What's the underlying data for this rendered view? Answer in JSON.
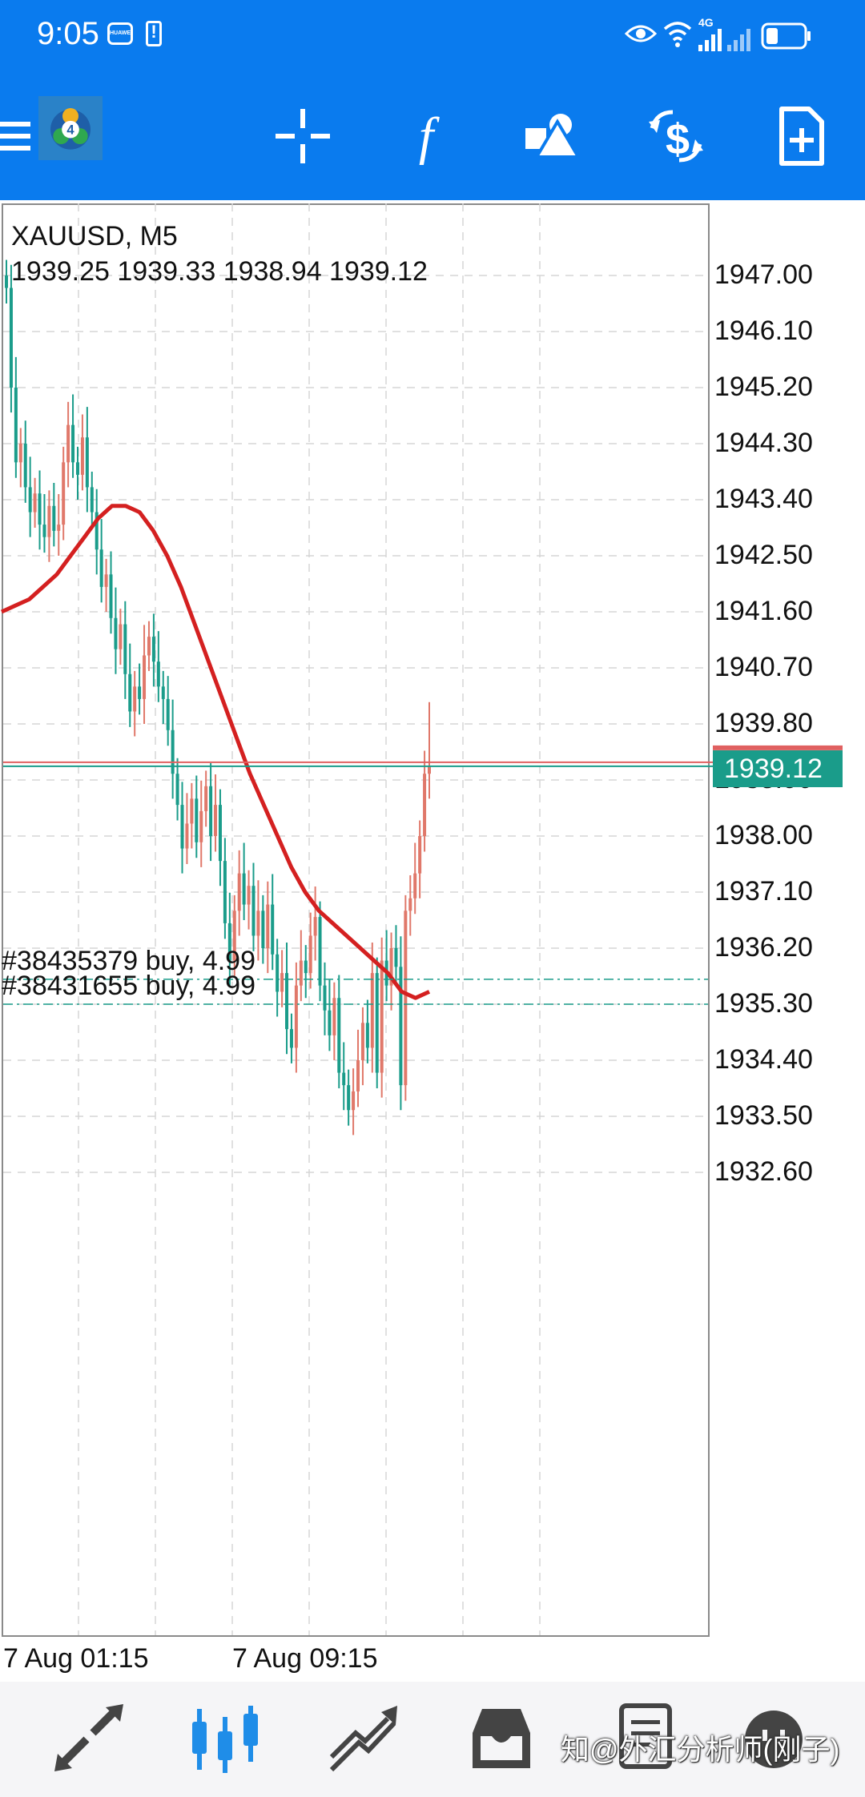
{
  "status_bar": {
    "time": "9:05",
    "network_label": "4G",
    "icons": [
      "huawei-app-icon",
      "alert-icon",
      "eye-icon",
      "wifi-icon",
      "signal-icon",
      "battery-icon"
    ]
  },
  "toolbar": {
    "icons": [
      "menu-icon",
      "metatrader-logo-icon",
      "crosshair-icon",
      "function-icon",
      "shapes-icon",
      "trade-icon",
      "new-order-icon"
    ]
  },
  "chart": {
    "symbol_timeframe": "XAUUSD, M5",
    "ohlc": "1939.25 1939.33 1938.94 1939.12",
    "current_price": "1939.12",
    "price_levels": [
      "1947.00",
      "1946.10",
      "1945.20",
      "1944.30",
      "1943.40",
      "1942.50",
      "1941.60",
      "1940.70",
      "1939.80",
      "1938.90",
      "1938.00",
      "1937.10",
      "1936.20",
      "1935.30",
      "1934.40",
      "1933.50",
      "1932.60"
    ],
    "orders": [
      {
        "label": "#38435379 buy, 4.99",
        "price": 1935.7
      },
      {
        "label": "#38431655 buy, 4.99",
        "price": 1935.3
      }
    ],
    "time_labels": [
      "7 Aug 01:15",
      "7 Aug 09:15"
    ],
    "colors": {
      "bull": "#e0786a",
      "bear": "#1a9c8a",
      "ma": "#d42020",
      "grid": "#d6d6d6"
    }
  },
  "chart_data": {
    "type": "candlestick",
    "title": "XAUUSD, M5",
    "ylim": [
      1931.9,
      1947.6
    ],
    "y_ticks": [
      1947.0,
      1946.1,
      1945.2,
      1944.3,
      1943.4,
      1942.5,
      1941.6,
      1940.7,
      1939.8,
      1938.9,
      1938.0,
      1937.1,
      1936.2,
      1935.3,
      1934.4,
      1933.5,
      1932.6
    ],
    "x_tick_labels": [
      "7 Aug 01:15",
      "7 Aug 09:15"
    ],
    "current_price": 1939.12,
    "close_series": [
      1946.8,
      1945.2,
      1944.0,
      1944.3,
      1943.6,
      1943.2,
      1943.5,
      1943.0,
      1942.8,
      1943.3,
      1942.9,
      1943.0,
      1944.0,
      1944.6,
      1944.0,
      1943.8,
      1944.4,
      1943.6,
      1943.2,
      1942.6,
      1942.0,
      1942.2,
      1941.5,
      1941.0,
      1941.4,
      1940.6,
      1940.0,
      1940.4,
      1940.2,
      1940.9,
      1941.2,
      1940.8,
      1940.4,
      1940.2,
      1939.7,
      1939.0,
      1938.5,
      1937.8,
      1938.2,
      1938.6,
      1937.9,
      1938.4,
      1938.8,
      1938.0,
      1938.5,
      1937.6,
      1936.6,
      1936.0,
      1936.8,
      1937.4,
      1936.9,
      1937.2,
      1936.4,
      1936.8,
      1936.2,
      1936.9,
      1936.1,
      1935.5,
      1935.8,
      1934.9,
      1934.6,
      1935.6,
      1936.0,
      1935.8,
      1936.4,
      1936.7,
      1935.6,
      1935.2,
      1934.8,
      1935.4,
      1934.2,
      1934.0,
      1933.6,
      1933.9,
      1934.4,
      1935.0,
      1934.6,
      1935.8,
      1934.2,
      1936.0,
      1935.6,
      1936.2,
      1935.9,
      1934.0,
      1936.8,
      1937.0,
      1937.4,
      1938.0,
      1939.0,
      1939.12
    ],
    "ma_series": [
      1941.6,
      1941.7,
      1941.8,
      1942.0,
      1942.2,
      1942.5,
      1942.8,
      1943.1,
      1943.3,
      1943.3,
      1943.2,
      1942.9,
      1942.5,
      1942.0,
      1941.4,
      1940.8,
      1940.2,
      1939.6,
      1939.0,
      1938.5,
      1938.0,
      1937.5,
      1937.1,
      1936.8,
      1936.6,
      1936.4,
      1936.2,
      1936.0,
      1935.8,
      1935.5,
      1935.4,
      1935.5
    ],
    "ma_color": "#d42020"
  },
  "bottom_nav": {
    "icons": [
      "quotes-icon",
      "chart-icon",
      "trade-icon",
      "history-icon",
      "messages-icon",
      "avatar-icon"
    ],
    "watermark": "知@外汇分析师(刚子)"
  }
}
